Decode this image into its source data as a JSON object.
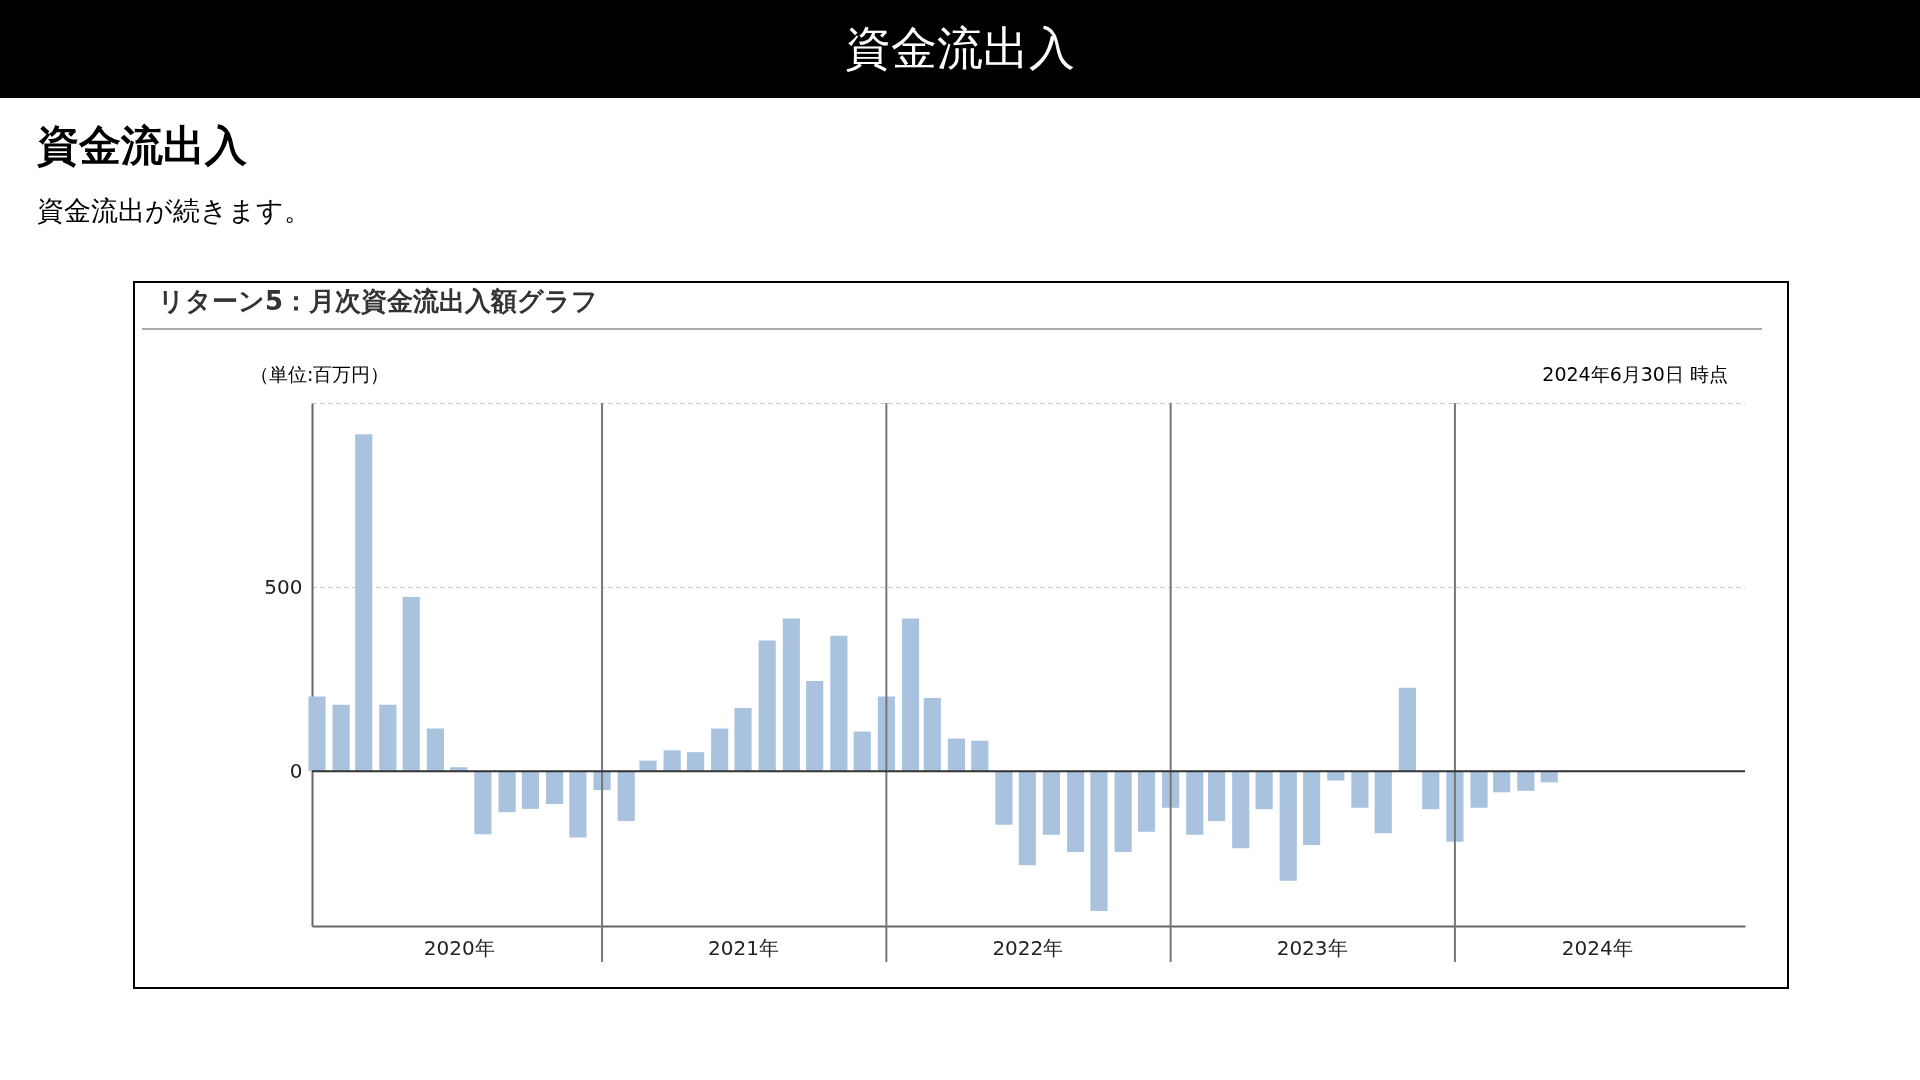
{
  "chart_data": {
    "type": "bar",
    "title": "資金流出入",
    "subtitle": "資金流出が続きます。",
    "ylabel": "（単位:百万円）",
    "annotations": [
      "資金流出入",
      "リターン5：月次資金流出入額グラフ",
      "2024年6月30日 時点"
    ],
    "x": [
      "2020-01",
      "2020-02",
      "2020-03",
      "2020-04",
      "2020-05",
      "2020-06",
      "2020-07",
      "2020-08",
      "2020-09",
      "2020-10",
      "2020-11",
      "2020-12",
      "2021-01",
      "2021-02",
      "2021-03",
      "2021-04",
      "2021-05",
      "2021-06",
      "2021-07",
      "2021-08",
      "2021-09",
      "2021-10",
      "2021-11",
      "2021-12",
      "2022-01",
      "2022-02",
      "2022-03",
      "2022-04",
      "2022-05",
      "2022-06",
      "2022-07",
      "2022-08",
      "2022-09",
      "2022-10",
      "2022-11",
      "2022-12",
      "2023-01",
      "2023-02",
      "2023-03",
      "2023-04",
      "2023-05",
      "2023-06",
      "2023-07",
      "2023-08",
      "2023-09",
      "2023-10",
      "2023-11",
      "2023-12",
      "2024-01",
      "2024-02",
      "2024-03",
      "2024-04",
      "2024-05"
    ],
    "values": [
      203,
      181,
      915,
      181,
      473,
      116,
      11,
      -171,
      -111,
      -102,
      -89,
      -180,
      -51,
      -135,
      29,
      57,
      52,
      116,
      172,
      355,
      415,
      245,
      368,
      108,
      203,
      415,
      199,
      89,
      83,
      -145,
      -255,
      -172,
      -219,
      -379,
      -219,
      -164,
      -99,
      -172,
      -135,
      -209,
      -103,
      -297,
      -200,
      -25,
      -99,
      -168,
      227,
      -103,
      -191,
      -99,
      -57,
      -53,
      -30
    ],
    "color": "#a9c3df",
    "xlim": [
      "2020-01",
      "2025-01"
    ],
    "xticks": [
      {
        "value": "2020-07",
        "label": "2020年"
      },
      {
        "value": "2021-01",
        "label": null
      },
      {
        "value": "2021-07",
        "label": "2021年"
      },
      {
        "value": "2022-01",
        "label": null
      },
      {
        "value": "2022-07",
        "label": "2022年"
      },
      {
        "value": "2023-01",
        "label": null
      },
      {
        "value": "2023-07",
        "label": "2023年"
      },
      {
        "value": "2024-01",
        "label": null
      },
      {
        "value": "2024-07",
        "label": "2024年"
      }
    ],
    "ylim": [
      -420,
      1000
    ],
    "yticks": [
      0,
      500,
      {
        "value": 1000,
        "label": null
      }
    ],
    "ref_lines": [
      {
        "axis": "y",
        "value": 0,
        "color": "#333333"
      }
    ],
    "grid": true
  }
}
